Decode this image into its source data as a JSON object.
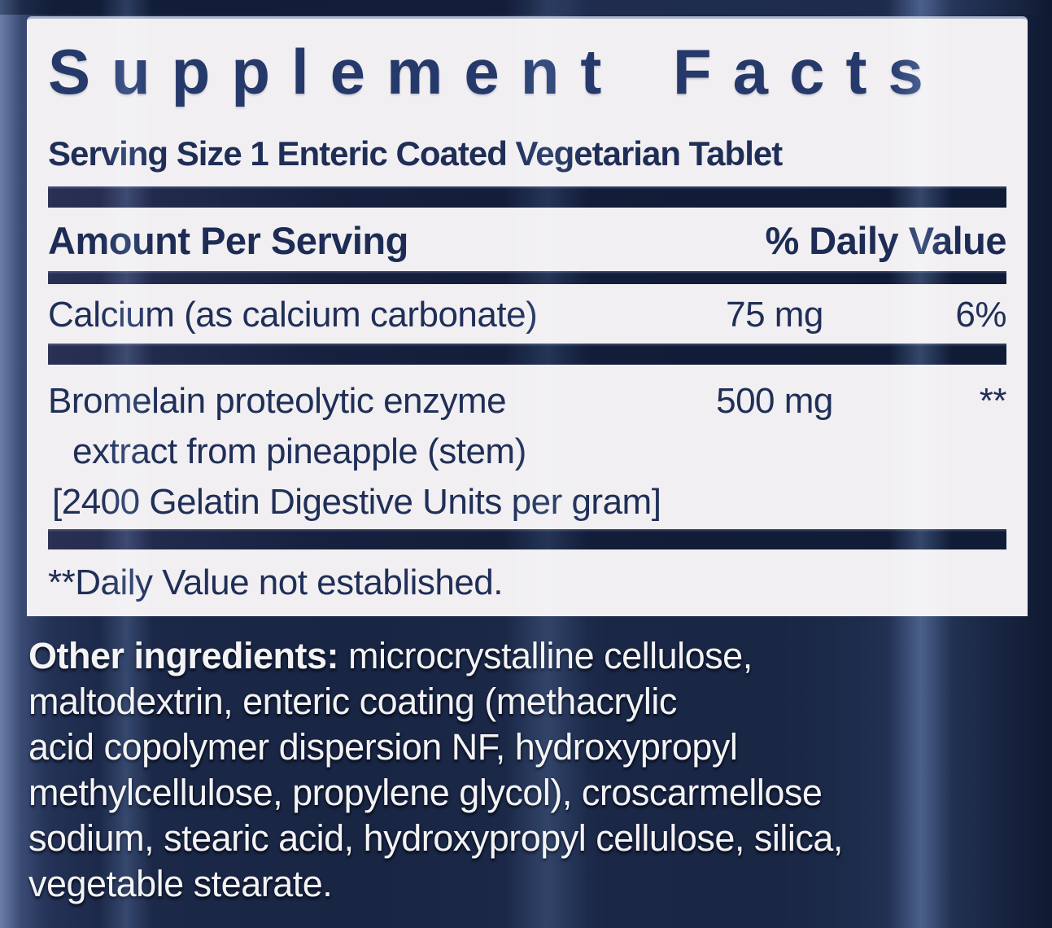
{
  "label": {
    "title": "Supplement Facts",
    "serving_size": "Serving Size 1 Enteric Coated Vegetarian Tablet",
    "columns": {
      "amount": "Amount Per Serving",
      "daily_value": "% Daily Value"
    },
    "rows": [
      {
        "name": "Calcium (as calcium carbonate)",
        "amount": "75 mg",
        "daily_value": "6%"
      },
      {
        "name_line1": "Bromelain proteolytic enzyme",
        "name_line2": "extract from pineapple (stem)",
        "name_line3": "[2400 Gelatin Digestive Units per gram]",
        "amount": "500 mg",
        "daily_value": "**"
      }
    ],
    "footnote": "**Daily Value not established."
  },
  "other_ingredients": {
    "label": "Other ingredients:",
    "line1_rest": " microcrystalline cellulose,",
    "line2": "maltodextrin, enteric coating (methacrylic",
    "line3": "acid copolymer dispersion NF, hydroxypropyl",
    "line4": "methylcellulose, propylene glycol), croscarmellose",
    "line5": "sodium, stearic acid, hydroxypropyl cellulose, silica,",
    "line6": "vegetable stearate."
  },
  "colors": {
    "background_navy": "#1a2745",
    "panel_background": "#f1eff1",
    "text_navy": "#202f58",
    "divider_navy": "#131e3a",
    "ingredients_text": "#f3f3f5"
  }
}
